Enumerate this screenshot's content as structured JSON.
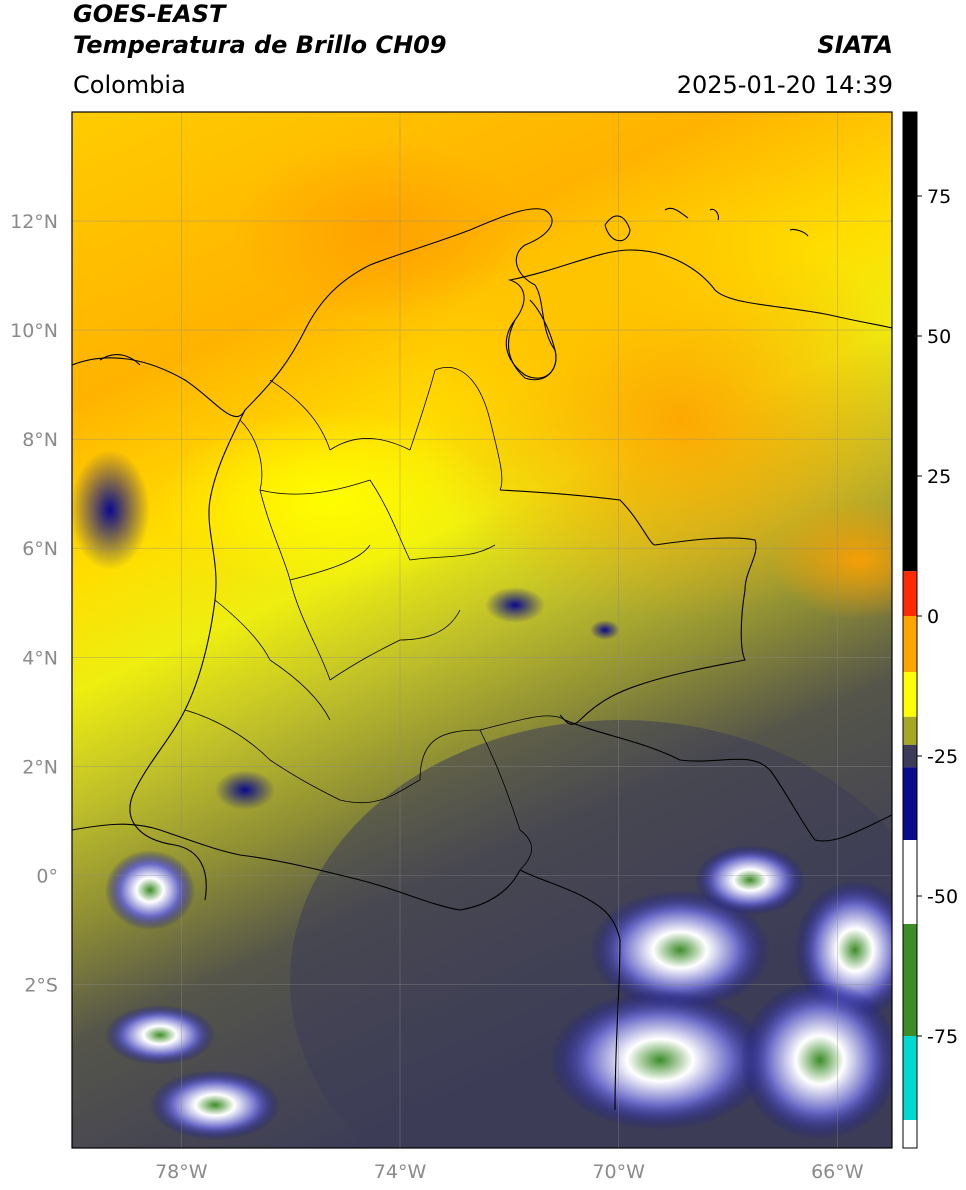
{
  "header": {
    "satellite": "GOES-EAST",
    "product": "Temperatura de Brillo CH09",
    "organization": "SIATA",
    "region": "Colombia",
    "datetime": "2025-01-20 14:39"
  },
  "map": {
    "lat_ticks": [
      {
        "value": 12,
        "label": "12°N"
      },
      {
        "value": 10,
        "label": "10°N"
      },
      {
        "value": 8,
        "label": "8°N"
      },
      {
        "value": 6,
        "label": "6°N"
      },
      {
        "value": 4,
        "label": "4°N"
      },
      {
        "value": 2,
        "label": "2°N"
      },
      {
        "value": 0,
        "label": "0°"
      },
      {
        "value": -2,
        "label": "2°S"
      }
    ],
    "lon_ticks": [
      {
        "value": -78,
        "label": "78°W"
      },
      {
        "value": -74,
        "label": "74°W"
      },
      {
        "value": -70,
        "label": "70°W"
      },
      {
        "value": -66,
        "label": "66°W"
      }
    ],
    "extent": {
      "lon_min": -80,
      "lon_max": -65,
      "lat_min": -5,
      "lat_max": 14
    },
    "gridlines": true
  },
  "colorbar": {
    "ticks": [
      {
        "value": 75,
        "label": "75"
      },
      {
        "value": 50,
        "label": "50"
      },
      {
        "value": 25,
        "label": "25"
      },
      {
        "value": 0,
        "label": "0"
      },
      {
        "value": -25,
        "label": "-25"
      },
      {
        "value": -50,
        "label": "-50"
      },
      {
        "value": -75,
        "label": "-75"
      }
    ],
    "range": [
      -95,
      90
    ],
    "colors": {
      "warm": "#000000",
      "red": "#ff2a00",
      "orange": "#ffa500",
      "yellow": "#ffff00",
      "olive": "#a7a726",
      "slate": "#3c3c58",
      "navy": "#0a0a8c",
      "white": "#ffffff",
      "green": "#3c8c28",
      "teal": "#00d9d0"
    }
  }
}
